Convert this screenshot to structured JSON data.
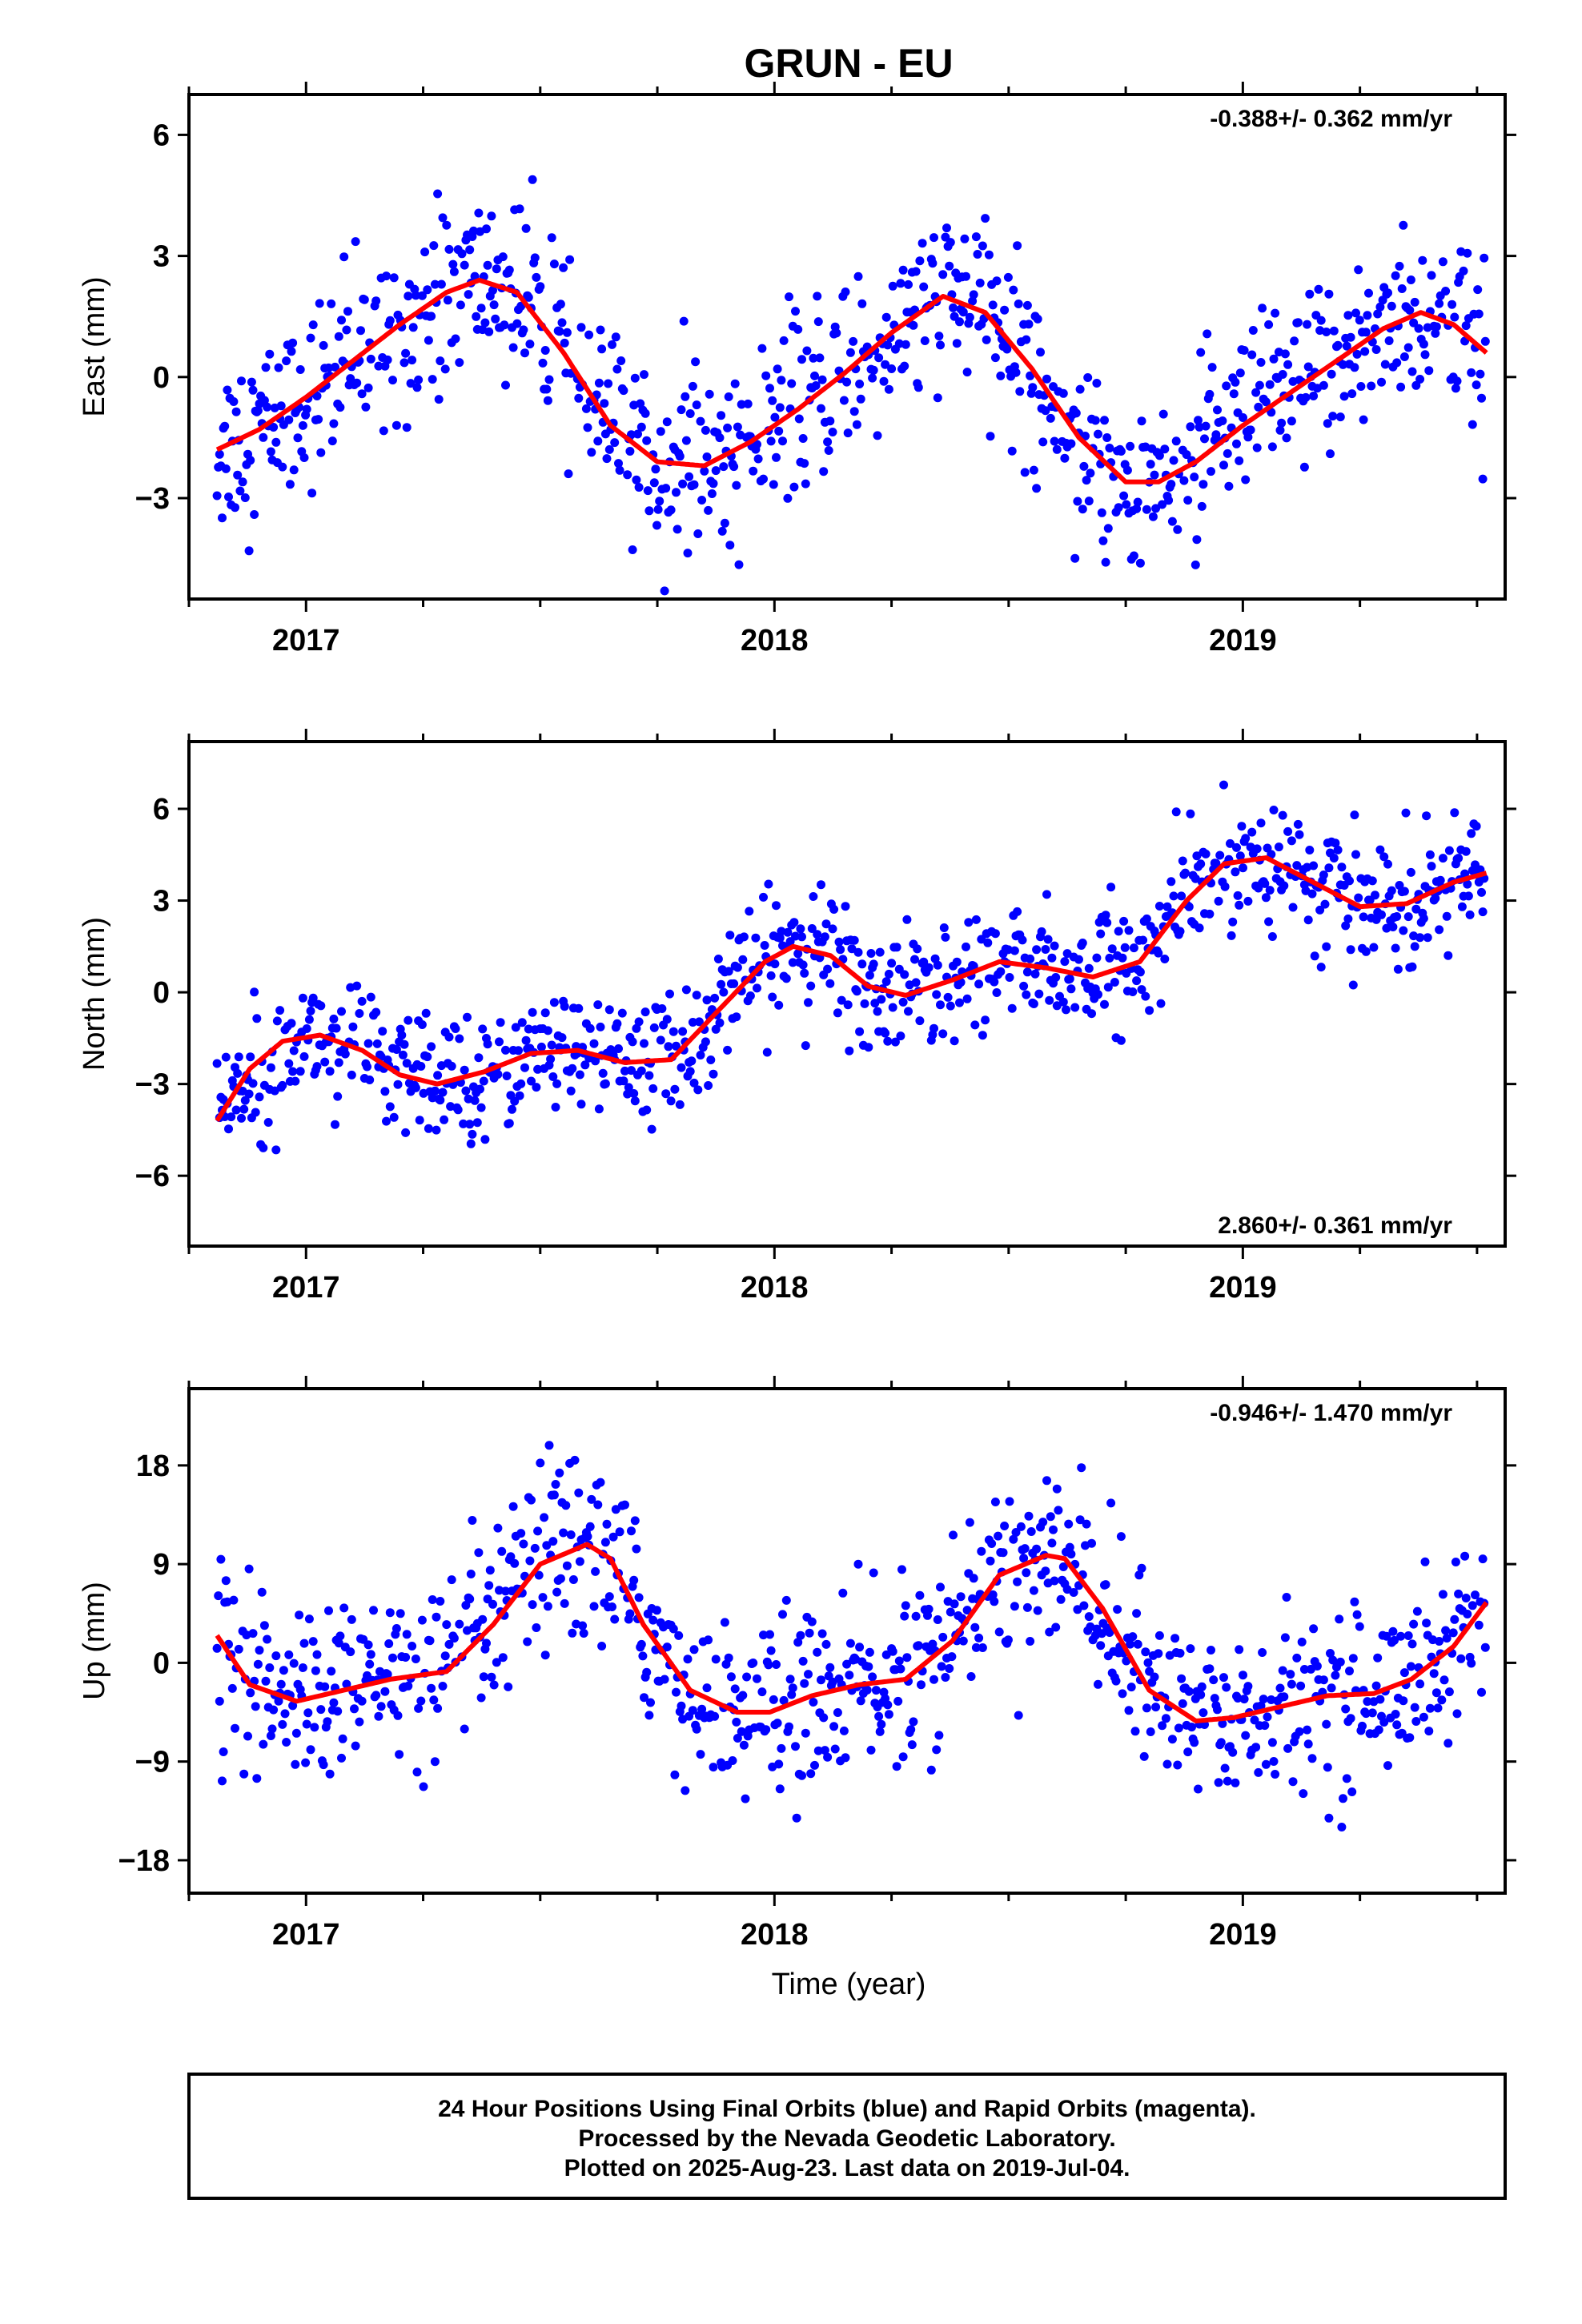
{
  "title": "GRUN - EU",
  "xlabel": "Time (year)",
  "footer": {
    "lines": [
      "24 Hour Positions Using Final Orbits (blue) and Rapid Orbits (magenta).",
      "Processed by the Nevada Geodetic Laboratory.",
      "Plotted on 2025-Aug-23. Last data on 2019-Jul-04."
    ]
  },
  "colors": {
    "points": "#0000ff",
    "fit": "#ff0000",
    "axes": "#000000",
    "background": "#ffffff"
  },
  "chart_data": [
    {
      "type": "scatter",
      "component": "east",
      "ylabel": "East (mm)",
      "rate_text": "-0.388+/- 0.362 mm/yr",
      "rate_position": "top-right",
      "xlim": [
        2016.75,
        2019.56
      ],
      "ylim": [
        -5.5,
        7.0
      ],
      "xticks": [
        2017,
        2018,
        2019
      ],
      "xtick_labels": [
        "2017",
        "2018",
        "2019"
      ],
      "yticks": [
        -3,
        0,
        3,
        6
      ],
      "ytick_labels": [
        "−3",
        "0",
        "3",
        "6"
      ],
      "grid": false,
      "point_color": "#0000ff",
      "scatter_noise_mm": 1.1,
      "fit": {
        "name": "",
        "color": "#ff0000",
        "x": [
          2016.81,
          2016.9,
          2017.0,
          2017.1,
          2017.2,
          2017.3,
          2017.37,
          2017.45,
          2017.55,
          2017.65,
          2017.75,
          2017.85,
          2017.95,
          2018.05,
          2018.15,
          2018.25,
          2018.36,
          2018.45,
          2018.55,
          2018.65,
          2018.75,
          2018.82,
          2018.9,
          2019.0,
          2019.1,
          2019.2,
          2019.3,
          2019.38,
          2019.45,
          2019.52
        ],
        "y": [
          -1.8,
          -1.3,
          -0.5,
          0.4,
          1.3,
          2.1,
          2.4,
          2.1,
          0.6,
          -1.2,
          -2.1,
          -2.2,
          -1.6,
          -0.8,
          0.1,
          1.1,
          2.0,
          1.6,
          0.2,
          -1.5,
          -2.6,
          -2.6,
          -2.1,
          -1.2,
          -0.4,
          0.4,
          1.2,
          1.6,
          1.3,
          0.6
        ]
      }
    },
    {
      "type": "scatter",
      "component": "north",
      "ylabel": "North (mm)",
      "rate_text": "2.860+/- 0.361 mm/yr",
      "rate_position": "bottom-right",
      "xlim": [
        2016.75,
        2019.56
      ],
      "ylim": [
        -8.3,
        8.2
      ],
      "xticks": [
        2017,
        2018,
        2019
      ],
      "xtick_labels": [
        "2017",
        "2018",
        "2019"
      ],
      "yticks": [
        -6,
        -3,
        0,
        3,
        6
      ],
      "ytick_labels": [
        "−6",
        "−3",
        "0",
        "3",
        "6"
      ],
      "grid": false,
      "point_color": "#0000ff",
      "scatter_noise_mm": 1.0,
      "fit": {
        "name": "",
        "color": "#ff0000",
        "x": [
          2016.81,
          2016.88,
          2016.95,
          2017.03,
          2017.12,
          2017.2,
          2017.28,
          2017.38,
          2017.48,
          2017.58,
          2017.68,
          2017.78,
          2017.88,
          2017.98,
          2018.04,
          2018.12,
          2018.2,
          2018.28,
          2018.38,
          2018.48,
          2018.58,
          2018.68,
          2018.78,
          2018.88,
          2018.96,
          2019.05,
          2019.15,
          2019.25,
          2019.35,
          2019.45,
          2019.52
        ],
        "y": [
          -4.2,
          -2.5,
          -1.6,
          -1.4,
          -1.9,
          -2.7,
          -3.0,
          -2.6,
          -2.0,
          -1.9,
          -2.3,
          -2.2,
          -0.6,
          1.0,
          1.5,
          1.2,
          0.2,
          -0.1,
          0.4,
          1.0,
          0.8,
          0.5,
          1.0,
          3.0,
          4.2,
          4.4,
          3.6,
          2.8,
          2.9,
          3.6,
          3.9
        ]
      }
    },
    {
      "type": "scatter",
      "component": "up",
      "ylabel": "Up (mm)",
      "rate_text": "-0.946+/- 1.470 mm/yr",
      "rate_position": "top-right",
      "xlim": [
        2016.75,
        2019.56
      ],
      "ylim": [
        -21.0,
        25.0
      ],
      "xticks": [
        2017,
        2018,
        2019
      ],
      "xtick_labels": [
        "2017",
        "2018",
        "2019"
      ],
      "yticks": [
        -18,
        -9,
        0,
        9,
        18
      ],
      "ytick_labels": [
        "−18",
        "−9",
        "0",
        "9",
        "18"
      ],
      "grid": false,
      "point_color": "#0000ff",
      "scatter_noise_mm": 4.0,
      "fit": {
        "name": "",
        "color": "#ff0000",
        "x": [
          2016.81,
          2016.88,
          2016.98,
          2017.08,
          2017.18,
          2017.3,
          2017.4,
          2017.5,
          2017.6,
          2017.65,
          2017.72,
          2017.82,
          2017.92,
          2017.99,
          2018.08,
          2018.18,
          2018.28,
          2018.38,
          2018.48,
          2018.58,
          2018.62,
          2018.7,
          2018.8,
          2018.9,
          2018.98,
          2019.08,
          2019.18,
          2019.28,
          2019.36,
          2019.45,
          2019.52
        ],
        "y": [
          2.5,
          -2.0,
          -3.5,
          -2.5,
          -1.5,
          -0.8,
          3.5,
          9.0,
          10.8,
          9.5,
          3.5,
          -2.5,
          -4.5,
          -4.5,
          -3.0,
          -2.0,
          -1.5,
          2.0,
          8.0,
          9.8,
          9.5,
          5.0,
          -2.5,
          -5.3,
          -5.0,
          -4.0,
          -3.0,
          -2.8,
          -1.5,
          1.5,
          5.5
        ]
      }
    }
  ]
}
